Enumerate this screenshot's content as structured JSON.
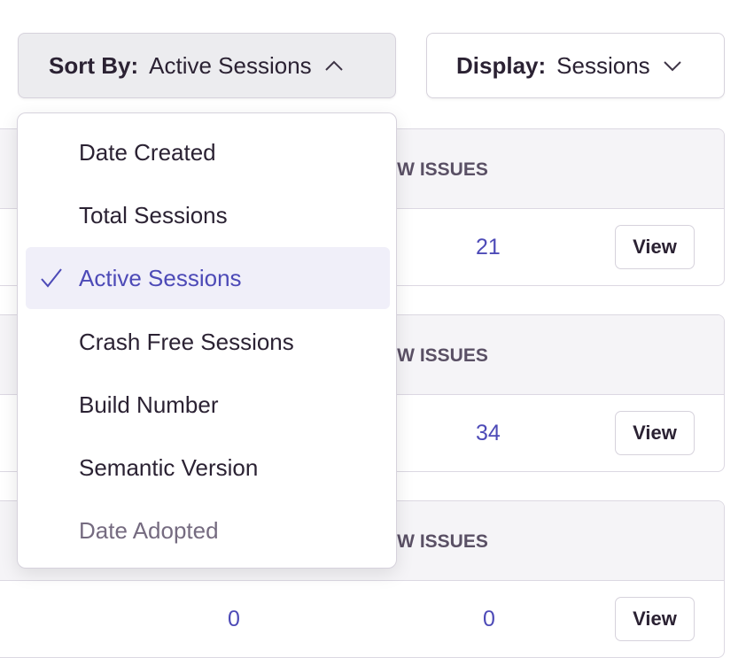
{
  "sort": {
    "label": "Sort By:",
    "value": "Active Sessions",
    "icon": "chevron-up-icon"
  },
  "display": {
    "label": "Display:",
    "value": "Sessions",
    "icon": "chevron-down-icon"
  },
  "menu": {
    "items": [
      {
        "label": "Date Created"
      },
      {
        "label": "Total Sessions"
      },
      {
        "label": "Active Sessions",
        "selected": true
      },
      {
        "label": "Crash Free Sessions"
      },
      {
        "label": "Build Number"
      },
      {
        "label": "Semantic Version"
      },
      {
        "label": "Date Adopted"
      }
    ]
  },
  "cards": [
    {
      "header": "NEW ISSUES",
      "new_issues": "21",
      "view_label": "View"
    },
    {
      "header": "NEW ISSUES",
      "new_issues": "34",
      "view_label": "View"
    },
    {
      "header": "NEW ISSUES",
      "other_value": "0",
      "new_issues": "0",
      "view_label": "View"
    }
  ],
  "colors": {
    "accent": "#4d4ab7",
    "selected_bg": "#f0eff9"
  }
}
